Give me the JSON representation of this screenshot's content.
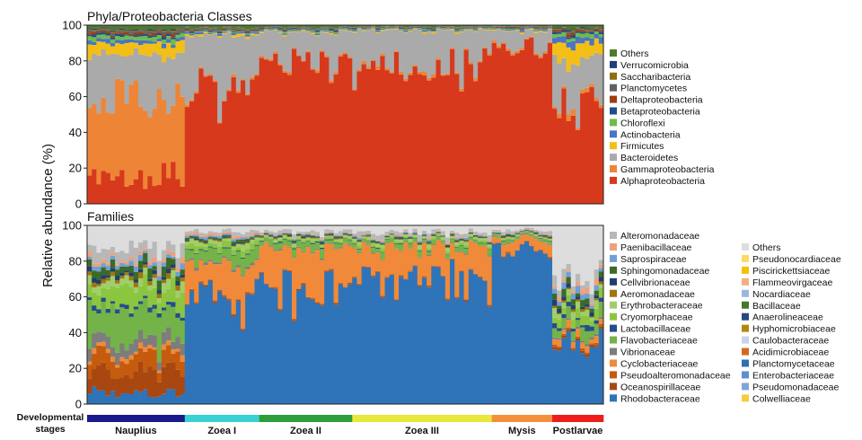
{
  "colors": {
    "Alphaproteobacteria": "#d7391c",
    "Gammaproteobacteria": "#ee8536",
    "Bacteroidetes": "#aaaaaa",
    "Firmicutes": "#f3bf16",
    "Actinobacteria": "#4a74c4",
    "Chloroflexi": "#6cbd4c",
    "Betaproteobacteria": "#1f4e8c",
    "Deltaproteobacteria": "#9c3d13",
    "Planctomycetes": "#616161",
    "Saccharibacteria": "#8c6e12",
    "Verrucomicrobia": "#203f74",
    "Others_phyla": "#4f7a2e",
    "Rhodobacteraceae": "#2f73b8",
    "Oceanospirillaceae": "#a94711",
    "Pseudoalteromonadaceae": "#c55b0e",
    "Cyclobacteriaceae": "#f08a3a",
    "Vibrionaceae": "#7d7d7d",
    "Flavobacteriaceae": "#73b348",
    "Lactobacillaceae": "#244d8c",
    "Cryomorphaceae": "#8cc63f",
    "Erythrobacteraceae": "#9fce6a",
    "Aeromonadaceae": "#a0770c",
    "Cellvibrionaceae": "#203e70",
    "Sphingomonadaceae": "#3a6b27",
    "Saprospiraceae": "#6ea0d6",
    "Paenibacillaceae": "#f0a07a",
    "Alteromonadaceae": "#b8b8b8",
    "Colwelliaceae": "#f6cc3c",
    "Pseudomonadaceae": "#7ea6dc",
    "Enterobacteriaceae": "#5f8fd0",
    "Planctomycetaceae": "#2e6fb5",
    "Acidimicrobiaceae": "#d2691e",
    "Caulobacteraceae": "#c8d4e8",
    "Hyphomicrobiaceae": "#b08a10",
    "Anaerolineaceae": "#27487a",
    "Bacillaceae": "#45762b",
    "Nocardiaceae": "#9ab8e0",
    "Flammeovirgaceae": "#f4b084",
    "Piscirickettsiaceae": "#f5c000",
    "Pseudonocardiaceae": "#ffd966",
    "Others_families": "#dddddd",
    "stage_Nauplius": "#1a1a8c",
    "stage_ZoeaI": "#39d1d1",
    "stage_ZoeaII": "#2e9e3a",
    "stage_ZoeaIII": "#e8e83a",
    "stage_Mysis": "#f58f3a",
    "stage_Postlarvae": "#ee1c1c"
  },
  "y_axis_label": "Relative abundance (%)",
  "developmental_label_1": "Developmental",
  "developmental_label_2": "stages",
  "stages": [
    {
      "name": "Nauplius",
      "count": 21,
      "color_key": "stage_Nauplius"
    },
    {
      "name": "Zoea I",
      "count": 16,
      "color_key": "stage_ZoeaI"
    },
    {
      "name": "Zoea II",
      "count": 20,
      "color_key": "stage_ZoeaII"
    },
    {
      "name": "Zoea III",
      "count": 30,
      "color_key": "stage_ZoeaIII"
    },
    {
      "name": "Mysis",
      "count": 13,
      "color_key": "stage_Mysis"
    },
    {
      "name": "Postlarvae",
      "count": 11,
      "color_key": "stage_Postlarvae"
    }
  ],
  "chart_data": [
    {
      "type": "bar",
      "stacked": true,
      "title": "Phyla/Proteobacteria Classes",
      "ylabel": "Relative abundance (%)",
      "ylim": [
        0,
        100
      ],
      "yticks": [
        0,
        20,
        40,
        60,
        80,
        100
      ],
      "samples": 111,
      "legend_position": "right",
      "legend": [
        "Others",
        "Verrucomicrobia",
        "Saccharibacteria",
        "Planctomycetes",
        "Deltaproteobacteria",
        "Betaproteobacteria",
        "Chloroflexi",
        "Actinobacteria",
        "Firmicutes",
        "Bacteroidetes",
        "Gammaproteobacteria",
        "Alphaproteobacteria"
      ],
      "stack_order": [
        "Alphaproteobacteria",
        "Gammaproteobacteria",
        "Bacteroidetes",
        "Firmicutes",
        "Actinobacteria",
        "Chloroflexi",
        "Betaproteobacteria",
        "Deltaproteobacteria",
        "Planctomycetes",
        "Saccharibacteria",
        "Verrucomicrobia",
        "Others"
      ],
      "color_keys": [
        "Alphaproteobacteria",
        "Gammaproteobacteria",
        "Bacteroidetes",
        "Firmicutes",
        "Actinobacteria",
        "Chloroflexi",
        "Betaproteobacteria",
        "Deltaproteobacteria",
        "Planctomycetes",
        "Saccharibacteria",
        "Verrucomicrobia",
        "Others_phyla"
      ],
      "stage_baseline": {
        "Nauplius": {
          "Alphaproteobacteria": 14,
          "Gammaproteobacteria": 46,
          "Bacteroidetes": 24,
          "Firmicutes": 6,
          "Actinobacteria": 2,
          "Chloroflexi": 2,
          "Betaproteobacteria": 1,
          "Deltaproteobacteria": 1,
          "Planctomycetes": 1,
          "Saccharibacteria": 0.5,
          "Verrucomicrobia": 0.5,
          "Others": 2
        },
        "Zoea I": {
          "Alphaproteobacteria": 63,
          "Gammaproteobacteria": 1,
          "Bacteroidetes": 30,
          "Firmicutes": 1,
          "Actinobacteria": 1,
          "Chloroflexi": 0.5,
          "Betaproteobacteria": 0.5,
          "Deltaproteobacteria": 0.5,
          "Planctomycetes": 0.5,
          "Saccharibacteria": 0.3,
          "Verrucomicrobia": 0.2,
          "Others": 1.5
        },
        "Zoea II": {
          "Alphaproteobacteria": 80,
          "Gammaproteobacteria": 1,
          "Bacteroidetes": 15,
          "Firmicutes": 0.5,
          "Actinobacteria": 0.5,
          "Chloroflexi": 0.5,
          "Betaproteobacteria": 0.5,
          "Deltaproteobacteria": 0.3,
          "Planctomycetes": 0.3,
          "Saccharibacteria": 0.2,
          "Verrucomicrobia": 0.2,
          "Others": 1
        },
        "Zoea III": {
          "Alphaproteobacteria": 76,
          "Gammaproteobacteria": 1,
          "Bacteroidetes": 20,
          "Firmicutes": 0.5,
          "Actinobacteria": 0.5,
          "Chloroflexi": 0.3,
          "Betaproteobacteria": 0.3,
          "Deltaproteobacteria": 0.2,
          "Planctomycetes": 0.2,
          "Saccharibacteria": 0.2,
          "Verrucomicrobia": 0.1,
          "Others": 0.7
        },
        "Mysis": {
          "Alphaproteobacteria": 88,
          "Gammaproteobacteria": 1,
          "Bacteroidetes": 8,
          "Firmicutes": 0.5,
          "Actinobacteria": 0.5,
          "Chloroflexi": 0.3,
          "Betaproteobacteria": 0.3,
          "Deltaproteobacteria": 0.3,
          "Planctomycetes": 0.3,
          "Saccharibacteria": 0.2,
          "Verrucomicrobia": 0.1,
          "Others": 0.5
        },
        "Postlarvae": {
          "Alphaproteobacteria": 55,
          "Gammaproteobacteria": 2,
          "Bacteroidetes": 24,
          "Firmicutes": 9,
          "Actinobacteria": 3,
          "Chloroflexi": 2,
          "Betaproteobacteria": 1,
          "Deltaproteobacteria": 1,
          "Planctomycetes": 0.5,
          "Saccharibacteria": 0.5,
          "Verrucomicrobia": 0.5,
          "Others": 1.5
        }
      }
    },
    {
      "type": "bar",
      "stacked": true,
      "title": "Families",
      "ylabel": "Relative abundance (%)",
      "ylim": [
        0,
        100
      ],
      "yticks": [
        0,
        20,
        40,
        60,
        80,
        100
      ],
      "samples": 111,
      "legend_position": "right",
      "legend_col1": [
        "Alteromonadaceae",
        "Paenibacillaceae",
        "Saprospiraceae",
        "Sphingomonadaceae",
        "Cellvibrionaceae",
        "Aeromonadaceae",
        "Erythrobacteraceae",
        "Cryomorphaceae",
        "Lactobacillaceae",
        "Flavobacteriaceae",
        "Vibrionaceae",
        "Cyclobacteriaceae",
        "Pseudoalteromonadaceae",
        "Oceanospirillaceae",
        "Rhodobacteraceae"
      ],
      "legend_col2": [
        "Others",
        "Pseudonocardiaceae",
        "Piscirickettsiaceae",
        "Flammeovirgaceae",
        "Nocardiaceae",
        "Bacillaceae",
        "Anaerolineaceae",
        "Hyphomicrobiaceae",
        "Caulobacteraceae",
        "Acidimicrobiaceae",
        "Planctomycetaceae",
        "Enterobacteriaceae",
        "Pseudomonadaceae",
        "Colwelliaceae"
      ],
      "stack_order": [
        "Rhodobacteraceae",
        "Oceanospirillaceae",
        "Pseudoalteromonadaceae",
        "Cyclobacteriaceae",
        "Vibrionaceae",
        "Flavobacteriaceae",
        "Lactobacillaceae",
        "Cryomorphaceae",
        "Erythrobacteraceae",
        "Aeromonadaceae",
        "Cellvibrionaceae",
        "Sphingomonadaceae",
        "Saprospiraceae",
        "Paenibacillaceae",
        "Alteromonadaceae",
        "Others"
      ],
      "color_keys": [
        "Rhodobacteraceae",
        "Oceanospirillaceae",
        "Pseudoalteromonadaceae",
        "Cyclobacteriaceae",
        "Vibrionaceae",
        "Flavobacteriaceae",
        "Lactobacillaceae",
        "Cryomorphaceae",
        "Erythrobacteraceae",
        "Aeromonadaceae",
        "Cellvibrionaceae",
        "Sphingomonadaceae",
        "Saprospiraceae",
        "Paenibacillaceae",
        "Alteromonadaceae",
        "Others_families"
      ],
      "stage_baseline": {
        "Nauplius": {
          "Rhodobacteraceae": 6,
          "Oceanospirillaceae": 12,
          "Pseudoalteromonadaceae": 8,
          "Cyclobacteriaceae": 2,
          "Vibrionaceae": 6,
          "Flavobacteriaceae": 18,
          "Lactobacillaceae": 2,
          "Cryomorphaceae": 10,
          "Erythrobacteraceae": 4,
          "Aeromonadaceae": 2,
          "Cellvibrionaceae": 2,
          "Sphingomonadaceae": 4,
          "Saprospiraceae": 2,
          "Paenibacillaceae": 2,
          "Alteromonadaceae": 6,
          "Others": 14
        },
        "Zoea I": {
          "Rhodobacteraceae": 60,
          "Oceanospirillaceae": 0.5,
          "Pseudoalteromonadaceae": 0.5,
          "Cyclobacteriaceae": 18,
          "Vibrionaceae": 1,
          "Flavobacteriaceae": 6,
          "Lactobacillaceae": 0.5,
          "Cryomorphaceae": 3,
          "Erythrobacteraceae": 2,
          "Aeromonadaceae": 0.5,
          "Cellvibrionaceae": 0.5,
          "Sphingomonadaceae": 1,
          "Saprospiraceae": 1,
          "Paenibacillaceae": 1,
          "Alteromonadaceae": 1.5,
          "Others": 3
        },
        "Zoea II": {
          "Rhodobacteraceae": 62,
          "Oceanospirillaceae": 0.5,
          "Pseudoalteromonadaceae": 0.5,
          "Cyclobacteriaceae": 23,
          "Vibrionaceae": 0.5,
          "Flavobacteriaceae": 3,
          "Lactobacillaceae": 0.5,
          "Cryomorphaceae": 1,
          "Erythrobacteraceae": 1,
          "Aeromonadaceae": 0.5,
          "Cellvibrionaceae": 0.5,
          "Sphingomonadaceae": 0.5,
          "Saprospiraceae": 0.5,
          "Paenibacillaceae": 0.5,
          "Alteromonadaceae": 1.5,
          "Others": 3.5
        },
        "Zoea III": {
          "Rhodobacteraceae": 72,
          "Oceanospirillaceae": 0.3,
          "Pseudoalteromonadaceae": 0.3,
          "Cyclobacteriaceae": 16,
          "Vibrionaceae": 0.3,
          "Flavobacteriaceae": 2,
          "Lactobacillaceae": 0.3,
          "Cryomorphaceae": 1,
          "Erythrobacteraceae": 1,
          "Aeromonadaceae": 0.3,
          "Cellvibrionaceae": 0.3,
          "Sphingomonadaceae": 0.5,
          "Saprospiraceae": 0.5,
          "Paenibacillaceae": 0.5,
          "Alteromonadaceae": 1.5,
          "Others": 3.4
        },
        "Mysis": {
          "Rhodobacteraceae": 86,
          "Oceanospirillaceae": 0.3,
          "Pseudoalteromonadaceae": 0.3,
          "Cyclobacteriaceae": 5,
          "Vibrionaceae": 0.3,
          "Flavobacteriaceae": 1,
          "Lactobacillaceae": 0.3,
          "Cryomorphaceae": 0.5,
          "Erythrobacteraceae": 0.5,
          "Aeromonadaceae": 0.3,
          "Cellvibrionaceae": 0.3,
          "Sphingomonadaceae": 0.5,
          "Saprospiraceae": 0.5,
          "Paenibacillaceae": 0.5,
          "Alteromonadaceae": 1,
          "Others": 2.7
        },
        "Postlarvae": {
          "Rhodobacteraceae": 35,
          "Oceanospirillaceae": 1,
          "Pseudoalteromonadaceae": 1,
          "Cyclobacteriaceae": 4,
          "Vibrionaceae": 1,
          "Flavobacteriaceae": 6,
          "Lactobacillaceae": 2,
          "Cryomorphaceae": 4,
          "Erythrobacteraceae": 3,
          "Aeromonadaceae": 1,
          "Cellvibrionaceae": 2,
          "Sphingomonadaceae": 3,
          "Saprospiraceae": 3,
          "Paenibacillaceae": 2,
          "Alteromonadaceae": 4,
          "Others": 28
        }
      }
    }
  ]
}
